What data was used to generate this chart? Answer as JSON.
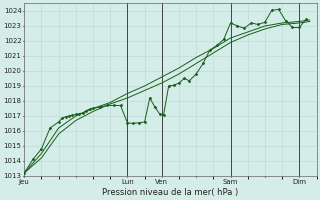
{
  "xlabel": "Pression niveau de la mer( hPa )",
  "ylim": [
    1013,
    1024.5
  ],
  "yticks": [
    1013,
    1014,
    1015,
    1016,
    1017,
    1018,
    1019,
    1020,
    1021,
    1022,
    1023,
    1024
  ],
  "xlim": [
    0,
    8.5
  ],
  "bg_color": "#d4ede8",
  "grid_color": "#b8d8d2",
  "line_color": "#1a5c1a",
  "x_day_labels": [
    "Jeu",
    "",
    "Lun",
    "Ven",
    "",
    "Sam",
    "",
    "Dim"
  ],
  "x_day_positions": [
    0.0,
    1.5,
    3.0,
    4.0,
    5.0,
    6.0,
    7.0,
    8.0
  ],
  "vline_positions": [
    3.0,
    4.0,
    6.0,
    8.0
  ],
  "line1": [
    [
      0.0,
      1013.2
    ],
    [
      0.25,
      1014.1
    ],
    [
      0.5,
      1014.8
    ],
    [
      0.75,
      1016.2
    ],
    [
      1.0,
      1016.6
    ],
    [
      1.1,
      1016.85
    ],
    [
      1.2,
      1016.95
    ],
    [
      1.3,
      1017.0
    ],
    [
      1.4,
      1017.05
    ],
    [
      1.5,
      1017.1
    ],
    [
      1.6,
      1017.15
    ],
    [
      1.7,
      1017.2
    ],
    [
      1.8,
      1017.35
    ],
    [
      1.9,
      1017.45
    ],
    [
      2.0,
      1017.5
    ],
    [
      2.2,
      1017.6
    ],
    [
      2.4,
      1017.7
    ],
    [
      2.6,
      1017.7
    ],
    [
      2.8,
      1017.7
    ],
    [
      3.0,
      1016.55
    ],
    [
      3.15,
      1016.5
    ],
    [
      3.35,
      1016.55
    ],
    [
      3.5,
      1016.6
    ],
    [
      3.65,
      1018.2
    ],
    [
      3.8,
      1017.6
    ],
    [
      3.95,
      1017.1
    ],
    [
      4.05,
      1017.05
    ],
    [
      4.2,
      1019.0
    ],
    [
      4.35,
      1019.05
    ],
    [
      4.5,
      1019.2
    ],
    [
      4.65,
      1019.5
    ],
    [
      4.8,
      1019.35
    ],
    [
      5.0,
      1019.8
    ],
    [
      5.2,
      1020.5
    ],
    [
      5.4,
      1021.4
    ],
    [
      5.6,
      1021.7
    ],
    [
      5.8,
      1022.1
    ],
    [
      6.0,
      1023.2
    ],
    [
      6.2,
      1023.0
    ],
    [
      6.4,
      1022.85
    ],
    [
      6.6,
      1023.2
    ],
    [
      6.8,
      1023.1
    ],
    [
      7.0,
      1023.25
    ],
    [
      7.2,
      1024.05
    ],
    [
      7.4,
      1024.1
    ],
    [
      7.6,
      1023.35
    ],
    [
      7.8,
      1022.9
    ],
    [
      8.0,
      1022.9
    ],
    [
      8.2,
      1023.45
    ]
  ],
  "line2": [
    [
      0.0,
      1013.2
    ],
    [
      0.5,
      1014.2
    ],
    [
      1.0,
      1015.8
    ],
    [
      1.5,
      1016.7
    ],
    [
      2.0,
      1017.3
    ],
    [
      2.5,
      1017.8
    ],
    [
      3.0,
      1018.2
    ],
    [
      3.5,
      1018.7
    ],
    [
      4.0,
      1019.2
    ],
    [
      4.5,
      1019.8
    ],
    [
      5.0,
      1020.5
    ],
    [
      5.5,
      1021.2
    ],
    [
      6.0,
      1021.9
    ],
    [
      6.5,
      1022.4
    ],
    [
      7.0,
      1022.8
    ],
    [
      7.5,
      1023.1
    ],
    [
      8.0,
      1023.2
    ],
    [
      8.3,
      1023.3
    ]
  ],
  "line3": [
    [
      0.0,
      1013.2
    ],
    [
      0.5,
      1014.5
    ],
    [
      1.0,
      1016.2
    ],
    [
      1.5,
      1017.0
    ],
    [
      2.0,
      1017.5
    ],
    [
      2.5,
      1017.9
    ],
    [
      3.0,
      1018.5
    ],
    [
      3.5,
      1019.0
    ],
    [
      4.0,
      1019.6
    ],
    [
      4.5,
      1020.2
    ],
    [
      5.0,
      1020.9
    ],
    [
      5.5,
      1021.5
    ],
    [
      6.0,
      1022.2
    ],
    [
      6.5,
      1022.6
    ],
    [
      7.0,
      1023.0
    ],
    [
      7.5,
      1023.2
    ],
    [
      8.0,
      1023.3
    ],
    [
      8.3,
      1023.4
    ]
  ]
}
